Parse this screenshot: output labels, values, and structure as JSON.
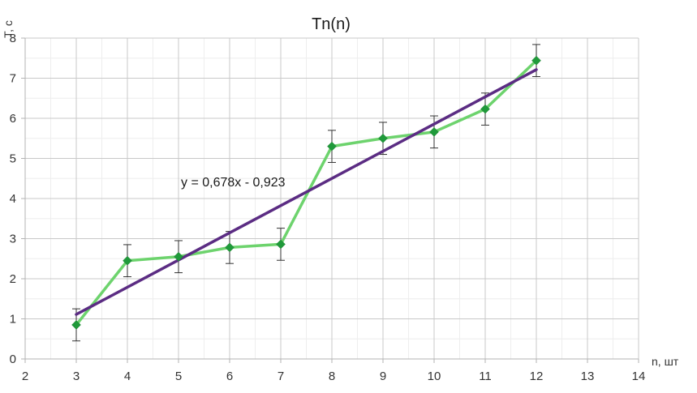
{
  "chart_data": {
    "type": "line",
    "title": "Tn(n)",
    "xlabel": "n, шт",
    "ylabel": "T, c",
    "xlim": [
      2,
      14
    ],
    "ylim": [
      0,
      8
    ],
    "xticks": [
      2,
      3,
      4,
      5,
      6,
      7,
      8,
      9,
      10,
      11,
      12,
      13,
      14
    ],
    "yticks": [
      0,
      1,
      2,
      3,
      4,
      5,
      6,
      7,
      8
    ],
    "grid": true,
    "legend": "none",
    "series": [
      {
        "x": [
          3,
          4,
          5,
          6,
          7,
          8,
          9,
          10,
          11,
          12
        ],
        "y": [
          0.85,
          2.45,
          2.55,
          2.78,
          2.86,
          5.3,
          5.5,
          5.66,
          6.23,
          7.44
        ],
        "error": [
          0.4,
          0.4,
          0.4,
          0.4,
          0.4,
          0.4,
          0.4,
          0.4,
          0.4,
          0.4
        ],
        "color": "#6dd36d",
        "marker_color": "#1f9a3a"
      }
    ],
    "trendline": {
      "slope": 0.678,
      "intercept": -0.923,
      "x_range": [
        3,
        12
      ],
      "color": "#5b2c83",
      "label": "y = 0,678x - 0,923"
    }
  }
}
